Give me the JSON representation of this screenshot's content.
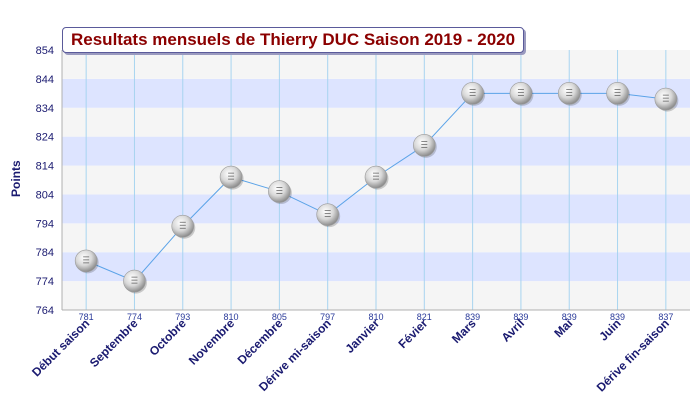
{
  "chart_data": {
    "type": "line",
    "title": "Resultats mensuels de Thierry DUC Saison 2019 - 2020",
    "xlabel": "",
    "ylabel": "Points",
    "categories": [
      "Début saison",
      "Septembre",
      "Octobre",
      "Novembre",
      "Décembre",
      "Dérive mi-saison",
      "Janvier",
      "Févier",
      "Mars",
      "Avril",
      "Mai",
      "Juin",
      "Dérive fin-saison"
    ],
    "series": [
      {
        "values": [
          781,
          774,
          793,
          810,
          805,
          797,
          810,
          821,
          839,
          839,
          839,
          839,
          837
        ]
      }
    ],
    "data_labels": [
      "781",
      "774",
      "793",
      "810",
      "805",
      "797",
      "810",
      "821",
      "839",
      "839",
      "839",
      "839",
      "837"
    ],
    "yticks": [
      "764",
      "774",
      "784",
      "794",
      "804",
      "814",
      "824",
      "834",
      "844",
      "854"
    ],
    "ylim": [
      764,
      854
    ],
    "grid": true,
    "colors": {
      "band_light": "#f5f5f5",
      "band_blue": "#dde4ff",
      "vgrid": "#a8d4f0",
      "line": "#5ba3e8",
      "label_text": "#1a1a70",
      "data_label_text": "#2a3a9a",
      "title_text": "#8b0000"
    }
  }
}
